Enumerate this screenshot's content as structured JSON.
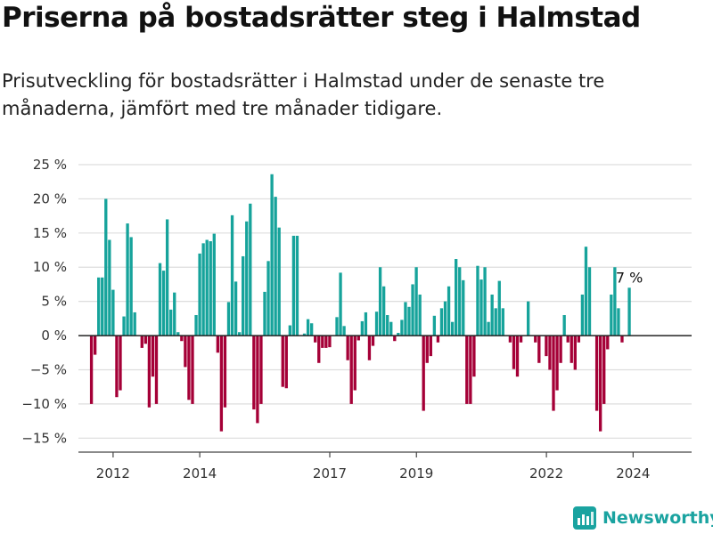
{
  "header": {
    "title": "Priserna på bostadsrätter steg i Halmstad",
    "subtitle": "Prisutveckling för bostadsrätter i Halmstad under de senaste tre månaderna, jämfört med tre månader tidigare."
  },
  "brand": {
    "name": "Newsworthy",
    "color": "#1aa3a0"
  },
  "colors": {
    "positive": "#16a39b",
    "negative": "#a50037",
    "grid": "#dddddd",
    "zero_line": "#222222"
  },
  "chart_data": {
    "type": "bar",
    "ylim": [
      -16,
      25
    ],
    "yticks": [
      -15,
      -10,
      -5,
      0,
      5,
      10,
      15,
      20,
      25
    ],
    "ytick_labels": [
      "−15 %",
      "−10 %",
      "−5 %",
      "0 %",
      "5 %",
      "10 %",
      "15 %",
      "20 %",
      "25 %"
    ],
    "x_start": 2011.5,
    "x_step": 0.0833,
    "xlim": [
      2011.2,
      2025.35
    ],
    "xticks": [
      2012,
      2014,
      2017,
      2019,
      2022,
      2024
    ],
    "xtick_labels": [
      "2012",
      "2014",
      "2017",
      "2019",
      "2022",
      "2024"
    ],
    "annotation": "7 %",
    "grid": true,
    "values": [
      -10,
      -2.8,
      8.5,
      8.5,
      20,
      14,
      6.7,
      -9,
      -8,
      2.8,
      16.4,
      14.4,
      3.4,
      0,
      -1.8,
      -1.2,
      -10.5,
      -6,
      -10,
      10.6,
      9.5,
      17,
      3.8,
      6.3,
      0.5,
      -0.8,
      -4.6,
      -9.4,
      -10,
      3,
      12,
      13.5,
      14,
      13.8,
      14.9,
      -2.5,
      -14,
      -10.5,
      4.9,
      17.6,
      7.9,
      0.5,
      11.6,
      16.7,
      19.3,
      -10.8,
      -12.8,
      -10,
      6.4,
      10.9,
      23.6,
      20.3,
      15.8,
      -7.5,
      -7.7,
      1.5,
      14.6,
      14.6,
      0,
      0.3,
      2.4,
      1.8,
      -1,
      -4,
      -1.8,
      -1.8,
      -1.7,
      0,
      2.7,
      9.2,
      1.4,
      -3.6,
      -10,
      -8,
      -0.7,
      2.1,
      3.4,
      -3.6,
      -1.5,
      3.5,
      10,
      7.2,
      3,
      2,
      -0.8,
      0.4,
      2.3,
      4.9,
      4.2,
      7.5,
      10,
      6,
      -11,
      -4,
      -3,
      2.9,
      -1,
      4,
      5,
      7.2,
      2,
      11.2,
      10,
      8.1,
      -10,
      -10,
      -6,
      10.2,
      8.2,
      10,
      2,
      6,
      4,
      8,
      4,
      0,
      -1,
      -4.9,
      -6,
      -1,
      0,
      5,
      0,
      -1,
      -4,
      0,
      -3,
      -5,
      -11,
      -8,
      -4,
      3,
      -1,
      -4,
      -5,
      -1,
      6,
      13,
      10,
      0,
      -11,
      -14,
      -10,
      -2,
      6,
      10,
      4,
      -1,
      0,
      7
    ]
  }
}
